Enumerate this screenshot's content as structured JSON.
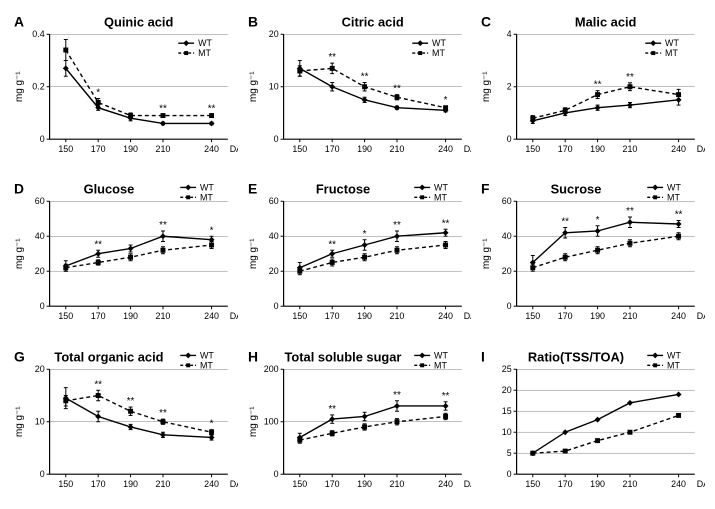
{
  "x_values": [
    150,
    170,
    190,
    210,
    240
  ],
  "x_label": "DAF",
  "y_label": "mg g⁻¹",
  "legend": {
    "wt": "WT",
    "mt": "MT"
  },
  "colors": {
    "line": "#000000",
    "axis": "#000000",
    "grid": "#808080",
    "bg": "#ffffff",
    "text": "#000000"
  },
  "font": {
    "axis": 10,
    "title": 13,
    "letter": 14,
    "tick": 9
  },
  "panels": [
    {
      "id": "A",
      "title": "Quinic acid",
      "y_label": "mg g⁻¹",
      "ylim": [
        0,
        0.4
      ],
      "yticks": [
        0,
        0.2,
        0.4
      ],
      "wt": [
        0.27,
        0.12,
        0.08,
        0.06,
        0.06
      ],
      "mt": [
        0.34,
        0.14,
        0.09,
        0.09,
        0.09
      ],
      "err_wt": [
        0.03,
        0.01,
        0.01,
        0.005,
        0.005
      ],
      "err_mt": [
        0.04,
        0.015,
        0.01,
        0.005,
        0.005
      ],
      "sig": [
        "",
        "*",
        "",
        "**",
        "**"
      ],
      "legend_pos": "inside-top-right"
    },
    {
      "id": "B",
      "title": "Citric acid",
      "y_label": "mg g⁻¹",
      "ylim": [
        0,
        20
      ],
      "yticks": [
        0,
        10,
        20
      ],
      "wt": [
        13.5,
        10.0,
        7.5,
        6.0,
        5.5
      ],
      "mt": [
        13.0,
        13.5,
        10.0,
        8.0,
        6.0
      ],
      "err_wt": [
        1.5,
        0.8,
        0.5,
        0.3,
        0.3
      ],
      "err_mt": [
        1.0,
        1.0,
        0.8,
        0.5,
        0.3
      ],
      "sig": [
        "",
        "**",
        "**",
        "**",
        "*"
      ],
      "legend_pos": "inside-top-right"
    },
    {
      "id": "C",
      "title": "Malic acid",
      "y_label": "mg g⁻¹",
      "ylim": [
        0,
        4
      ],
      "yticks": [
        0,
        2,
        4
      ],
      "wt": [
        0.7,
        1.0,
        1.2,
        1.3,
        1.5
      ],
      "mt": [
        0.8,
        1.1,
        1.7,
        2.0,
        1.7
      ],
      "err_wt": [
        0.1,
        0.1,
        0.1,
        0.1,
        0.2
      ],
      "err_mt": [
        0.1,
        0.1,
        0.15,
        0.15,
        0.2
      ],
      "sig": [
        "",
        "",
        "**",
        "**",
        ""
      ],
      "legend_pos": "inside-top-right"
    },
    {
      "id": "D",
      "title": "Glucose",
      "y_label": "mg g⁻¹",
      "ylim": [
        0,
        60
      ],
      "yticks": [
        0,
        20,
        40,
        60
      ],
      "wt": [
        23,
        30,
        33,
        40,
        38
      ],
      "mt": [
        22,
        25,
        28,
        32,
        35
      ],
      "err_wt": [
        3,
        2,
        2,
        3,
        2
      ],
      "err_mt": [
        2,
        1.5,
        2,
        2,
        2
      ],
      "sig": [
        "",
        "**",
        "",
        "**",
        "*"
      ],
      "legend_pos": "above"
    },
    {
      "id": "E",
      "title": "Fructose",
      "y_label": "mg g⁻¹",
      "ylim": [
        0,
        60
      ],
      "yticks": [
        0,
        20,
        40,
        60
      ],
      "wt": [
        22,
        30,
        35,
        40,
        42
      ],
      "mt": [
        20,
        25,
        28,
        32,
        35
      ],
      "err_wt": [
        3,
        2,
        3,
        3,
        2
      ],
      "err_mt": [
        2,
        2,
        2,
        2,
        2
      ],
      "sig": [
        "",
        "**",
        "*",
        "**",
        "**"
      ],
      "legend_pos": "above"
    },
    {
      "id": "F",
      "title": "Sucrose",
      "y_label": "mg g⁻¹",
      "ylim": [
        0,
        60
      ],
      "yticks": [
        0,
        20,
        40,
        60
      ],
      "wt": [
        25,
        42,
        43,
        48,
        47
      ],
      "mt": [
        22,
        28,
        32,
        36,
        40
      ],
      "err_wt": [
        4,
        3,
        3,
        3,
        2
      ],
      "err_mt": [
        2,
        2,
        2,
        2,
        2
      ],
      "sig": [
        "",
        "**",
        "*",
        "**",
        "**"
      ],
      "legend_pos": "above"
    },
    {
      "id": "G",
      "title": "Total organic acid",
      "y_label": "mg g⁻¹",
      "ylim": [
        0,
        20
      ],
      "yticks": [
        0,
        10,
        20
      ],
      "wt": [
        14.5,
        11,
        9,
        7.5,
        7
      ],
      "mt": [
        14,
        15,
        12,
        10,
        8
      ],
      "err_wt": [
        2,
        1,
        0.5,
        0.5,
        0.5
      ],
      "err_mt": [
        1,
        1,
        0.8,
        0.5,
        0.5
      ],
      "sig": [
        "",
        "**",
        "**",
        "**",
        "*"
      ],
      "legend_pos": "above"
    },
    {
      "id": "H",
      "title": "Total soluble sugar",
      "y_label": "mg g⁻¹",
      "ylim": [
        0,
        200
      ],
      "yticks": [
        0,
        100,
        200
      ],
      "wt": [
        70,
        105,
        110,
        130,
        130
      ],
      "mt": [
        65,
        78,
        90,
        100,
        110
      ],
      "err_wt": [
        8,
        8,
        8,
        10,
        8
      ],
      "err_mt": [
        6,
        5,
        6,
        6,
        6
      ],
      "sig": [
        "",
        "**",
        "",
        "**",
        "**"
      ],
      "legend_pos": "above"
    },
    {
      "id": "I",
      "title": "Ratio(TSS/TOA)",
      "y_label": "",
      "ylim": [
        0,
        25
      ],
      "yticks": [
        0,
        5,
        10,
        15,
        20,
        25
      ],
      "wt": [
        5,
        10,
        13,
        17,
        19
      ],
      "mt": [
        5,
        5.5,
        8,
        10,
        14
      ],
      "err_wt": [
        0,
        0,
        0,
        0,
        0
      ],
      "err_mt": [
        0,
        0,
        0,
        0,
        0
      ],
      "sig": [
        "",
        "",
        "",
        "",
        ""
      ],
      "legend_pos": "above"
    }
  ]
}
